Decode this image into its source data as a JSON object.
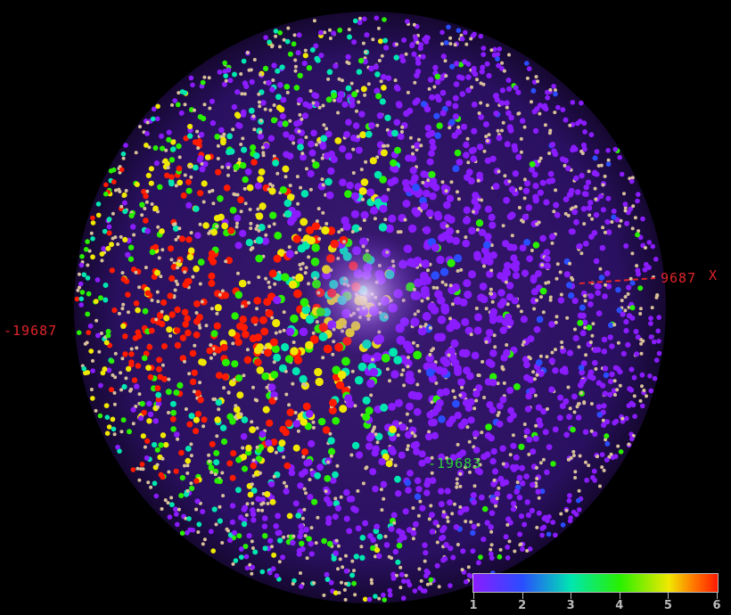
{
  "axis_labels": {
    "x_min": "-19687",
    "x_max": "9687",
    "x_axis_name": "X",
    "other_marker": "-19683"
  },
  "colorbar": {
    "ticks": [
      "1",
      "2",
      "3",
      "4",
      "5",
      "6"
    ],
    "range": [
      1,
      6
    ],
    "colors": [
      "#8a1cff",
      "#2a4dff",
      "#00e6b0",
      "#28f000",
      "#f0e800",
      "#ff1a00"
    ]
  },
  "colors": {
    "background": "#000000",
    "axis_red": "#e0242a",
    "marker_green": "#2bd13a",
    "mesh_tan": "#d8c09a"
  }
}
